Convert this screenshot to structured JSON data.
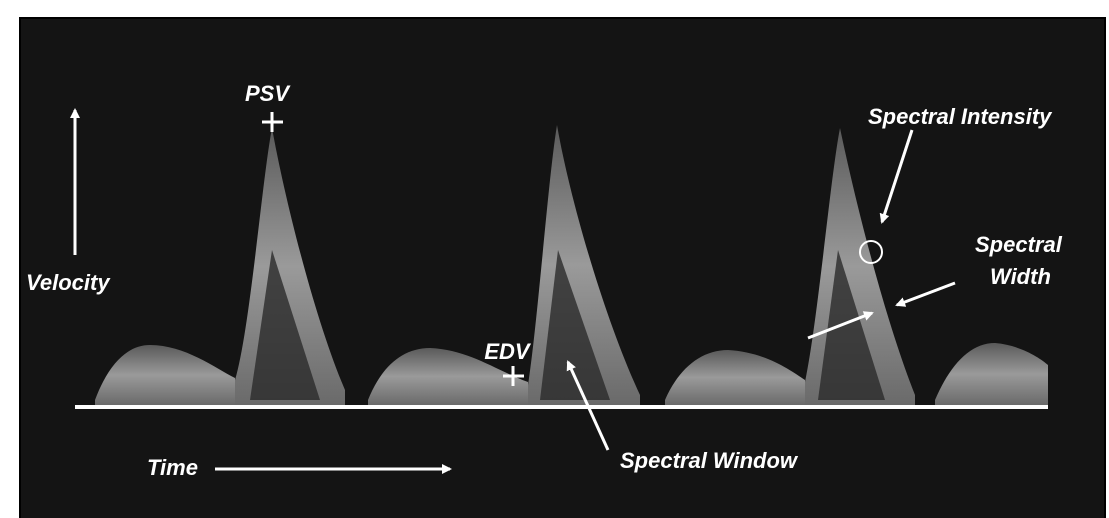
{
  "labels": {
    "psv": "PSV",
    "edv": "EDV",
    "velocity": "Velocity",
    "time": "Time",
    "spectral_window": "Spectral Window",
    "spectral_intensity": "Spectral Intensity",
    "spectral_width": [
      "Spectral",
      "Width"
    ]
  }
}
